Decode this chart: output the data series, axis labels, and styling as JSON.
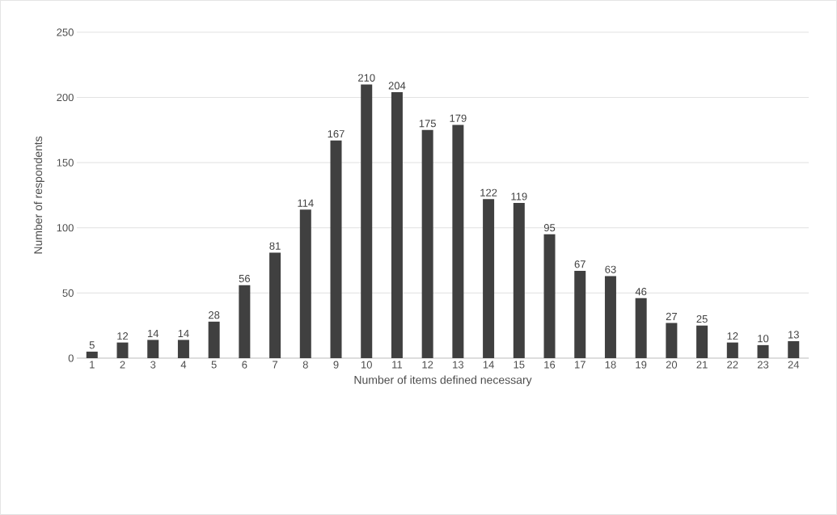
{
  "chart_data": {
    "type": "bar",
    "xlabel": "Number of items defined necessary",
    "ylabel": "Number of respondents",
    "categories": [
      "1",
      "2",
      "3",
      "4",
      "5",
      "6",
      "7",
      "8",
      "9",
      "10",
      "11",
      "12",
      "13",
      "14",
      "15",
      "16",
      "17",
      "18",
      "19",
      "20",
      "21",
      "22",
      "23",
      "24"
    ],
    "values": [
      5,
      12,
      14,
      14,
      28,
      56,
      81,
      114,
      167,
      210,
      204,
      175,
      179,
      122,
      119,
      95,
      67,
      63,
      46,
      27,
      25,
      12,
      10,
      13
    ],
    "color": "#404040",
    "ylim": [
      0,
      250
    ],
    "yticks": [
      0,
      50,
      100,
      150,
      200,
      250
    ],
    "grid": "y",
    "data_labels": true
  }
}
